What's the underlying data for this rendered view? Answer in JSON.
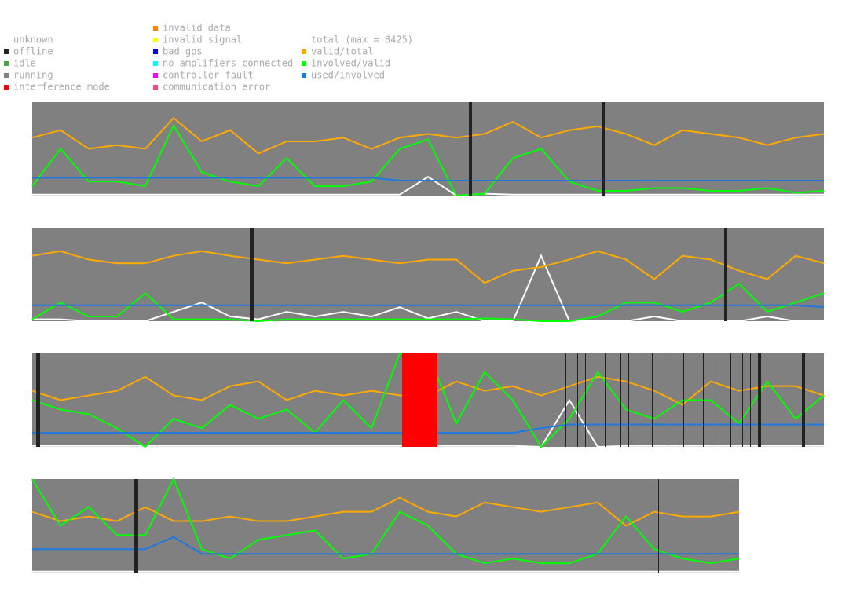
{
  "legend": {
    "status": [
      {
        "name": "unknown",
        "color": "#ffffff"
      },
      {
        "name": "offline",
        "color": "#222222"
      },
      {
        "name": "idle",
        "color": "#44aa44"
      },
      {
        "name": "running",
        "color": "#808080"
      },
      {
        "name": "interference mode",
        "color": "#ff0000"
      },
      {
        "name": "invalid data",
        "color": "#ff8000"
      },
      {
        "name": "invalid signal",
        "color": "#ffff00"
      },
      {
        "name": "bad gps",
        "color": "#0000ff"
      },
      {
        "name": "no amplifiers connected",
        "color": "#00ffff"
      },
      {
        "name": "controller fault",
        "color": "#ff00ff"
      },
      {
        "name": "communication error",
        "color": "#ff4080"
      }
    ],
    "series": [
      {
        "name": "total (max = 8425)",
        "color": "#ffffff"
      },
      {
        "name": "valid/total",
        "color": "#ffaa00"
      },
      {
        "name": "involved/valid",
        "color": "#00ff00"
      },
      {
        "name": "used/involved",
        "color": "#1e78e0"
      }
    ]
  },
  "chart_data": [
    {
      "type": "line",
      "xlim": [
        0,
        1008
      ],
      "ylim": [
        0,
        1
      ],
      "background": "#808080",
      "x": [
        0,
        36,
        72,
        108,
        144,
        180,
        216,
        252,
        288,
        324,
        360,
        396,
        432,
        468,
        504,
        540,
        576,
        612,
        648,
        684,
        720,
        756,
        792,
        828,
        864,
        900,
        936,
        972,
        1008
      ],
      "status_segments": [
        {
          "status": "offline",
          "start": 556,
          "end": 560
        },
        {
          "status": "offline",
          "start": 725,
          "end": 729
        }
      ],
      "series": [
        {
          "values": [
            0.01,
            0.01,
            0.01,
            0.01,
            0.01,
            0.01,
            0.01,
            0.01,
            0.01,
            0.01,
            0.01,
            0.01,
            0.01,
            0.01,
            0.2,
            0.0,
            0.02,
            0.01,
            0.01,
            0.01,
            0.01,
            0.01,
            0.01,
            0.01,
            0.01,
            0.01,
            0.01,
            0.01,
            0.01
          ]
        },
        {
          "values": [
            0.62,
            0.7,
            0.5,
            0.54,
            0.5,
            0.83,
            0.58,
            0.7,
            0.45,
            0.58,
            0.58,
            0.62,
            0.5,
            0.62,
            0.66,
            0.62,
            0.66,
            0.79,
            0.62,
            0.7,
            0.74,
            0.66,
            0.54,
            0.7,
            0.66,
            0.62,
            0.54,
            0.62,
            0.66
          ]
        },
        {
          "values": [
            0.1,
            0.5,
            0.15,
            0.15,
            0.1,
            0.75,
            0.25,
            0.15,
            0.1,
            0.4,
            0.1,
            0.1,
            0.15,
            0.5,
            0.6,
            0.0,
            0.02,
            0.4,
            0.5,
            0.15,
            0.05,
            0.05,
            0.08,
            0.08,
            0.05,
            0.05,
            0.08,
            0.03,
            0.05
          ]
        },
        {
          "values": [
            0.19,
            0.19,
            0.19,
            0.19,
            0.19,
            0.19,
            0.19,
            0.19,
            0.19,
            0.19,
            0.19,
            0.19,
            0.19,
            0.16,
            0.16,
            0.16,
            0.16,
            0.16,
            0.16,
            0.16,
            0.16,
            0.16,
            0.16,
            0.16,
            0.16,
            0.16,
            0.16,
            0.16,
            0.16
          ]
        }
      ]
    },
    {
      "type": "line",
      "xlim": [
        0,
        1008
      ],
      "ylim": [
        0,
        1
      ],
      "background": "#808080",
      "x": [
        0,
        36,
        72,
        108,
        144,
        180,
        216,
        252,
        288,
        324,
        360,
        396,
        432,
        468,
        504,
        540,
        576,
        612,
        648,
        684,
        720,
        756,
        792,
        828,
        864,
        900,
        936,
        972,
        1008
      ],
      "status_segments": [
        {
          "status": "offline",
          "start": 277,
          "end": 282
        },
        {
          "status": "offline",
          "start": 881,
          "end": 885
        }
      ],
      "series": [
        {
          "values": [
            0.02,
            0.02,
            0.0,
            0.0,
            0.0,
            0.1,
            0.2,
            0.05,
            0.02,
            0.1,
            0.05,
            0.1,
            0.05,
            0.15,
            0.03,
            0.1,
            0.0,
            0.0,
            0.7,
            0.0,
            0.0,
            0.0,
            0.05,
            0.0,
            0.0,
            0.0,
            0.05,
            0.0,
            0.0
          ]
        },
        {
          "values": [
            0.7,
            0.75,
            0.66,
            0.62,
            0.62,
            0.7,
            0.75,
            0.7,
            0.66,
            0.62,
            0.66,
            0.7,
            0.66,
            0.62,
            0.66,
            0.66,
            0.41,
            0.54,
            0.58,
            0.66,
            0.75,
            0.66,
            0.45,
            0.7,
            0.66,
            0.54,
            0.45,
            0.7,
            0.62
          ]
        },
        {
          "values": [
            0.02,
            0.2,
            0.05,
            0.05,
            0.3,
            0.02,
            0.02,
            0.02,
            0.0,
            0.02,
            0.02,
            0.02,
            0.02,
            0.02,
            0.02,
            0.02,
            0.03,
            0.02,
            0.0,
            0.0,
            0.05,
            0.2,
            0.2,
            0.1,
            0.2,
            0.4,
            0.1,
            0.2,
            0.3
          ]
        },
        {
          "values": [
            0.17,
            0.17,
            0.17,
            0.17,
            0.17,
            0.17,
            0.17,
            0.17,
            0.17,
            0.17,
            0.17,
            0.17,
            0.17,
            0.17,
            0.17,
            0.17,
            0.17,
            0.17,
            0.17,
            0.17,
            0.17,
            0.17,
            0.17,
            0.17,
            0.17,
            0.17,
            0.17,
            0.17,
            0.15
          ]
        }
      ]
    },
    {
      "type": "line",
      "xlim": [
        0,
        1008
      ],
      "ylim": [
        0,
        1
      ],
      "background": "#808080",
      "x": [
        0,
        36,
        72,
        108,
        144,
        180,
        216,
        252,
        288,
        324,
        360,
        396,
        432,
        468,
        504,
        540,
        576,
        612,
        648,
        684,
        720,
        756,
        792,
        828,
        864,
        900,
        936,
        972,
        1008
      ],
      "status_segments": [
        {
          "status": "offline",
          "start": 5,
          "end": 10
        },
        {
          "status": "interference mode",
          "start": 471,
          "end": 516
        },
        {
          "status": "offline",
          "start": 924,
          "end": 928
        },
        {
          "status": "offline",
          "start": 980,
          "end": 984
        },
        {
          "status": "offline",
          "start": 679,
          "end": 680
        },
        {
          "status": "offline",
          "start": 694,
          "end": 695
        },
        {
          "status": "offline",
          "start": 704,
          "end": 705
        },
        {
          "status": "offline",
          "start": 711,
          "end": 712
        },
        {
          "status": "offline",
          "start": 729,
          "end": 730
        },
        {
          "status": "offline",
          "start": 749,
          "end": 750
        },
        {
          "status": "offline",
          "start": 759,
          "end": 760
        },
        {
          "status": "offline",
          "start": 789,
          "end": 790
        },
        {
          "status": "offline",
          "start": 809,
          "end": 810
        },
        {
          "status": "offline",
          "start": 829,
          "end": 830
        },
        {
          "status": "offline",
          "start": 854,
          "end": 855
        },
        {
          "status": "offline",
          "start": 869,
          "end": 870
        },
        {
          "status": "offline",
          "start": 889,
          "end": 890
        },
        {
          "status": "offline",
          "start": 904,
          "end": 905
        },
        {
          "status": "offline",
          "start": 914,
          "end": 915
        }
      ],
      "series": [
        {
          "values": [
            0.01,
            0.01,
            0.01,
            0.01,
            0.01,
            0.01,
            0.01,
            0.01,
            0.01,
            0.01,
            0.01,
            0.01,
            0.01,
            0.01,
            0.01,
            0.01,
            0.01,
            0.01,
            0.0,
            0.5,
            0.0,
            0.01,
            0.01,
            0.01,
            0.01,
            0.01,
            0.01,
            0.01,
            0.01
          ]
        },
        {
          "values": [
            0.6,
            0.5,
            0.55,
            0.6,
            0.75,
            0.55,
            0.5,
            0.65,
            0.7,
            0.5,
            0.6,
            0.55,
            0.6,
            0.55,
            0.55,
            0.7,
            0.6,
            0.65,
            0.55,
            0.65,
            0.75,
            0.7,
            0.6,
            0.45,
            0.7,
            0.6,
            0.65,
            0.65,
            0.55
          ]
        },
        {
          "values": [
            0.5,
            0.4,
            0.35,
            0.2,
            0.0,
            0.3,
            0.2,
            0.45,
            0.3,
            0.4,
            0.15,
            0.5,
            0.2,
            1.0,
            1.0,
            0.25,
            0.8,
            0.5,
            0.0,
            0.3,
            0.8,
            0.4,
            0.3,
            0.5,
            0.5,
            0.25,
            0.7,
            0.3,
            0.55
          ]
        },
        {
          "values": [
            0.15,
            0.15,
            0.15,
            0.15,
            0.15,
            0.15,
            0.15,
            0.15,
            0.15,
            0.15,
            0.15,
            0.15,
            0.15,
            0.15,
            0.15,
            0.15,
            0.15,
            0.15,
            0.2,
            0.24,
            0.24,
            0.24,
            0.24,
            0.24,
            0.24,
            0.24,
            0.24,
            0.24,
            0.24
          ]
        }
      ]
    },
    {
      "type": "line",
      "xlim": [
        0,
        900
      ],
      "ylim": [
        0,
        1
      ],
      "background": "#808080",
      "x": [
        0,
        36,
        72,
        108,
        144,
        180,
        216,
        252,
        288,
        324,
        360,
        396,
        432,
        468,
        504,
        540,
        576,
        612,
        648,
        684,
        720,
        756,
        792,
        828,
        864,
        900
      ],
      "status_segments": [
        {
          "status": "offline",
          "start": 130,
          "end": 135
        },
        {
          "status": "offline",
          "start": 797,
          "end": 798
        }
      ],
      "series": [
        {
          "values": [
            0.01,
            0.01,
            0.01,
            0.01,
            0.01,
            0.01,
            0.01,
            0.01,
            0.01,
            0.01,
            0.01,
            0.01,
            0.01,
            0.01,
            0.01,
            0.01,
            0.01,
            0.01,
            0.01,
            0.01,
            0.01,
            0.01,
            0.01,
            0.01,
            0.01,
            0.01
          ]
        },
        {
          "values": [
            0.65,
            0.55,
            0.6,
            0.55,
            0.7,
            0.55,
            0.55,
            0.6,
            0.55,
            0.55,
            0.6,
            0.65,
            0.65,
            0.8,
            0.65,
            0.6,
            0.75,
            0.7,
            0.65,
            0.7,
            0.75,
            0.5,
            0.65,
            0.6,
            0.6,
            0.65
          ]
        },
        {
          "values": [
            1.0,
            0.5,
            0.7,
            0.4,
            0.4,
            1.0,
            0.25,
            0.15,
            0.35,
            0.4,
            0.45,
            0.15,
            0.2,
            0.65,
            0.5,
            0.2,
            0.1,
            0.15,
            0.1,
            0.1,
            0.2,
            0.6,
            0.25,
            0.15,
            0.1,
            0.15
          ]
        },
        {
          "values": [
            0.25,
            0.25,
            0.25,
            0.25,
            0.25,
            0.38,
            0.2,
            0.2,
            0.2,
            0.2,
            0.2,
            0.2,
            0.2,
            0.2,
            0.2,
            0.2,
            0.2,
            0.2,
            0.2,
            0.2,
            0.2,
            0.2,
            0.2,
            0.2,
            0.2,
            0.2
          ]
        }
      ]
    }
  ]
}
